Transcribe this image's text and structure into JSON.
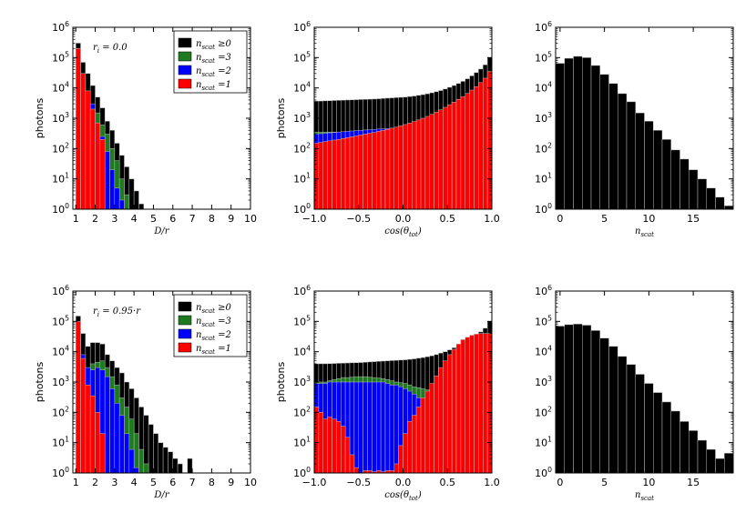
{
  "colors": {
    "all": "#000000",
    "n3": "#1f7a1f",
    "n2": "#0000ff",
    "n1": "#ff0000",
    "edge": "#bbbbbb"
  },
  "chart_data": [
    {
      "type": "bar",
      "subtype": "log-histogram",
      "row": 0,
      "col": 0,
      "annotation": "r_i = 0.0",
      "xlabel": "D/r",
      "ylabel": "photons",
      "xlim": [
        0.85,
        10
      ],
      "ylim": [
        1,
        1000000
      ],
      "xticks": [
        1,
        2,
        3,
        4,
        5,
        6,
        7,
        8,
        9,
        10
      ],
      "xtick_labels": [
        "1",
        "2",
        "3",
        "4",
        "5",
        "6",
        "7",
        "8",
        "9",
        "10"
      ],
      "yticks": [
        1,
        10,
        100,
        1000,
        10000,
        100000,
        1000000
      ],
      "ytick_labels": [
        "10^0",
        "10^1",
        "10^2",
        "10^3",
        "10^4",
        "10^5",
        "10^6"
      ],
      "legend": {
        "position": "top-right",
        "entries": [
          {
            "label": "n_scat ≥0",
            "series": "all"
          },
          {
            "label": "n_scat =3",
            "series": "n3"
          },
          {
            "label": "n_scat =2",
            "series": "n2"
          },
          {
            "label": "n_scat =1",
            "series": "n1"
          }
        ]
      },
      "bins": {
        "start": 1.0,
        "width": 0.25
      },
      "series": [
        {
          "name": "n_scat ≥0",
          "key": "all",
          "values": [
            300000,
            70000,
            30000,
            12000,
            5000,
            2200,
            800,
            400,
            150,
            60,
            25,
            10,
            4,
            1.5,
            0.8,
            0.5,
            0.3,
            0.2
          ]
        },
        {
          "name": "n_scat =3",
          "key": "n3",
          "values": [
            0,
            0,
            0,
            0,
            1500,
            600,
            300,
            100,
            40,
            10,
            3,
            0,
            0,
            0,
            0,
            0,
            0,
            0
          ]
        },
        {
          "name": "n_scat =2",
          "key": "n2",
          "values": [
            30000,
            20000,
            7000,
            3000,
            500,
            250,
            80,
            20,
            5,
            2,
            0,
            0,
            0,
            0,
            0,
            0,
            0,
            0
          ]
        },
        {
          "name": "n_scat =1",
          "key": "n1",
          "values": [
            200000,
            30000,
            8000,
            2000,
            700,
            200,
            0,
            0,
            0,
            0,
            0,
            0,
            0,
            0,
            0,
            0,
            0,
            0
          ]
        }
      ]
    },
    {
      "type": "bar",
      "subtype": "log-histogram",
      "row": 0,
      "col": 1,
      "xlabel": "cos(θ_tot)",
      "ylabel": "photons",
      "xlim": [
        -1.0,
        1.0
      ],
      "ylim": [
        1,
        1000000
      ],
      "xticks": [
        -1.0,
        -0.5,
        0.0,
        0.5,
        1.0
      ],
      "xtick_labels": [
        "−1.0",
        "−0.5",
        "0.0",
        "0.5",
        "1.0"
      ],
      "yticks": [
        1,
        10,
        100,
        1000,
        10000,
        100000,
        1000000
      ],
      "ytick_labels": [
        "10^0",
        "10^1",
        "10^2",
        "10^3",
        "10^4",
        "10^5",
        "10^6"
      ],
      "bins": {
        "start": -1.0,
        "width": 0.05
      },
      "series": [
        {
          "name": "n_scat ≥0",
          "key": "all",
          "values": [
            3700,
            3700,
            3750,
            3800,
            3850,
            3900,
            3950,
            4000,
            4050,
            4100,
            4150,
            4200,
            4250,
            4300,
            4400,
            4500,
            4600,
            4700,
            4800,
            4900,
            5000,
            5200,
            5400,
            5700,
            6000,
            6400,
            6900,
            7500,
            8200,
            9200,
            10500,
            12000,
            14000,
            16500,
            20000,
            25000,
            32000,
            42000,
            58000,
            100000
          ]
        },
        {
          "name": "n_scat =3",
          "key": "n3",
          "values": [
            350,
            350,
            350,
            350,
            350,
            350,
            350,
            350,
            350,
            350,
            350,
            350,
            350,
            350,
            350,
            350,
            350,
            350,
            350,
            350,
            350,
            350,
            350,
            350,
            350,
            350,
            350,
            350,
            350,
            350,
            350,
            350,
            350,
            350,
            350,
            350,
            350,
            350,
            350,
            350
          ]
        },
        {
          "name": "n_scat =2",
          "key": "n2",
          "values": [
            300,
            310,
            320,
            330,
            340,
            350,
            360,
            370,
            380,
            390,
            400,
            410,
            420,
            430,
            440,
            450,
            460,
            470,
            480,
            490,
            500,
            520,
            540,
            560,
            580,
            600,
            620,
            640,
            660,
            680,
            700,
            720,
            740,
            760,
            780,
            800,
            820,
            840,
            860,
            880
          ]
        },
        {
          "name": "n_scat =1",
          "key": "n1",
          "values": [
            150,
            160,
            170,
            180,
            190,
            200,
            215,
            230,
            245,
            260,
            280,
            300,
            320,
            340,
            370,
            400,
            430,
            470,
            510,
            560,
            620,
            690,
            780,
            880,
            1000,
            1150,
            1350,
            1600,
            1900,
            2300,
            2800,
            3400,
            4200,
            5200,
            6600,
            8500,
            11000,
            15000,
            21000,
            35000
          ]
        }
      ]
    },
    {
      "type": "bar",
      "subtype": "log-histogram",
      "row": 0,
      "col": 2,
      "xlabel": "n_scat",
      "ylabel": "",
      "xlim": [
        -0.5,
        19.5
      ],
      "ylim": [
        1,
        1000000
      ],
      "xticks": [
        0,
        5,
        10,
        15
      ],
      "xtick_labels": [
        "0",
        "5",
        "10",
        "15"
      ],
      "yticks": [
        1,
        10,
        100,
        1000,
        10000,
        100000,
        1000000
      ],
      "ytick_labels": [
        "10^0",
        "10^1",
        "10^2",
        "10^3",
        "10^4",
        "10^5",
        "10^6"
      ],
      "bins": {
        "start": -0.5,
        "width": 1
      },
      "series": [
        {
          "name": "n_scat",
          "key": "all",
          "values": [
            65000,
            95000,
            110000,
            100000,
            55000,
            28000,
            14000,
            6500,
            3500,
            1500,
            800,
            400,
            200,
            90,
            45,
            20,
            10,
            5,
            2.5,
            1.3
          ]
        }
      ]
    },
    {
      "type": "bar",
      "subtype": "log-histogram",
      "row": 1,
      "col": 0,
      "annotation": "r_i = 0.95·r",
      "xlabel": "D/r",
      "ylabel": "photons",
      "xlim": [
        0.85,
        10
      ],
      "ylim": [
        1,
        1000000
      ],
      "xticks": [
        1,
        2,
        3,
        4,
        5,
        6,
        7,
        8,
        9,
        10
      ],
      "xtick_labels": [
        "1",
        "2",
        "3",
        "4",
        "5",
        "6",
        "7",
        "8",
        "9",
        "10"
      ],
      "yticks": [
        1,
        10,
        100,
        1000,
        10000,
        100000,
        1000000
      ],
      "ytick_labels": [
        "10^0",
        "10^1",
        "10^2",
        "10^3",
        "10^4",
        "10^5",
        "10^6"
      ],
      "legend": {
        "position": "top-right",
        "entries": [
          {
            "label": "n_scat ≥0",
            "series": "all"
          },
          {
            "label": "n_scat =3",
            "series": "n3"
          },
          {
            "label": "n_scat =2",
            "series": "n2"
          },
          {
            "label": "n_scat =1",
            "series": "n1"
          }
        ]
      },
      "bins": {
        "start": 1.0,
        "width": 0.25
      },
      "series": [
        {
          "name": "n_scat ≥0",
          "key": "all",
          "values": [
            150000,
            40000,
            15000,
            20000,
            20000,
            18000,
            8000,
            5000,
            3000,
            2000,
            1000,
            600,
            300,
            150,
            80,
            40,
            20,
            10,
            7,
            5,
            3,
            2,
            1,
            3,
            0.5,
            0.3
          ]
        },
        {
          "name": "n_scat =3",
          "key": "n3",
          "values": [
            0,
            0,
            0,
            4000,
            4500,
            5000,
            3000,
            1500,
            800,
            300,
            150,
            60,
            20,
            6,
            2,
            0,
            0,
            0,
            0,
            0,
            0,
            0,
            0,
            0,
            0,
            0
          ]
        },
        {
          "name": "n_scat =2",
          "key": "n2",
          "values": [
            30000,
            8000,
            3000,
            2500,
            3000,
            2500,
            1500,
            600,
            200,
            80,
            20,
            6,
            1.5,
            0,
            0,
            0,
            0,
            0,
            0,
            0,
            0,
            0,
            0,
            0,
            0,
            0
          ]
        },
        {
          "name": "n_scat =1",
          "key": "n1",
          "values": [
            100000,
            6000,
            800,
            350,
            100,
            20,
            0,
            0,
            0,
            0,
            0,
            0,
            0,
            0,
            0,
            0,
            0,
            0,
            0,
            0,
            0,
            0,
            0,
            0,
            0,
            0
          ]
        }
      ]
    },
    {
      "type": "bar",
      "subtype": "log-histogram",
      "row": 1,
      "col": 1,
      "xlabel": "cos(θ_tot)",
      "ylabel": "photons",
      "xlim": [
        -1.0,
        1.0
      ],
      "ylim": [
        1,
        1000000
      ],
      "xticks": [
        -1.0,
        -0.5,
        0.0,
        0.5,
        1.0
      ],
      "xtick_labels": [
        "−1.0",
        "−0.5",
        "0.0",
        "0.5",
        "1.0"
      ],
      "yticks": [
        1,
        10,
        100,
        1000,
        10000,
        100000,
        1000000
      ],
      "ytick_labels": [
        "10^0",
        "10^1",
        "10^2",
        "10^3",
        "10^4",
        "10^5",
        "10^6"
      ],
      "bins": {
        "start": -1.0,
        "width": 0.05
      },
      "series": [
        {
          "name": "n_scat ≥0",
          "key": "all",
          "values": [
            4000,
            4000,
            4000,
            4050,
            4100,
            4150,
            4200,
            4250,
            4300,
            4350,
            4400,
            4500,
            4600,
            4700,
            4800,
            4900,
            5000,
            5100,
            5200,
            5300,
            5400,
            5600,
            5800,
            6100,
            6400,
            6800,
            7300,
            8000,
            9000,
            10000,
            11500,
            13500,
            16000,
            19000,
            23000,
            28000,
            35000,
            45000,
            60000,
            100000
          ]
        },
        {
          "name": "n_scat =3",
          "key": "n3",
          "values": [
            1000,
            1000,
            1000,
            1100,
            1200,
            1300,
            1400,
            1400,
            1450,
            1500,
            1500,
            1500,
            1450,
            1400,
            1350,
            1300,
            1200,
            1100,
            1000,
            950,
            900,
            800,
            700,
            650,
            600,
            550,
            500,
            450,
            400,
            350,
            300,
            250,
            200,
            150,
            120,
            100,
            80,
            60,
            40,
            20
          ]
        },
        {
          "name": "n_scat =2",
          "key": "n2",
          "values": [
            900,
            900,
            900,
            1000,
            1000,
            1000,
            1000,
            1000,
            1000,
            1000,
            1000,
            1000,
            1000,
            1000,
            1000,
            1000,
            900,
            800,
            800,
            700,
            600,
            500,
            400,
            300,
            250,
            200,
            150,
            100,
            80,
            60,
            40,
            30,
            20,
            15,
            10,
            8,
            6,
            5,
            3,
            2
          ]
        },
        {
          "name": "n_scat =1",
          "key": "n1",
          "values": [
            150,
            100,
            60,
            70,
            60,
            50,
            35,
            15,
            4,
            1.5,
            1,
            1.2,
            1.2,
            1.1,
            1.2,
            1.1,
            1.2,
            1.2,
            2,
            8,
            20,
            50,
            80,
            150,
            300,
            500,
            900,
            1600,
            3000,
            5000,
            8000,
            12000,
            18000,
            25000,
            30000,
            35000,
            38000,
            40000,
            40000,
            40000
          ]
        }
      ]
    },
    {
      "type": "bar",
      "subtype": "log-histogram",
      "row": 1,
      "col": 2,
      "xlabel": "n_scat",
      "ylabel": "",
      "xlim": [
        -0.5,
        19.5
      ],
      "ylim": [
        1,
        1000000
      ],
      "xticks": [
        0,
        5,
        10,
        15
      ],
      "xtick_labels": [
        "0",
        "5",
        "10",
        "15"
      ],
      "yticks": [
        1,
        10,
        100,
        1000,
        10000,
        100000,
        1000000
      ],
      "ytick_labels": [
        "10^0",
        "10^1",
        "10^2",
        "10^3",
        "10^4",
        "10^5",
        "10^6"
      ],
      "bins": {
        "start": -0.5,
        "width": 1
      },
      "series": [
        {
          "name": "n_scat",
          "key": "all",
          "values": [
            70000,
            78000,
            82000,
            75000,
            50000,
            28000,
            15000,
            7000,
            3800,
            1800,
            900,
            450,
            220,
            110,
            50,
            25,
            12,
            6,
            3,
            4.5
          ]
        }
      ]
    }
  ]
}
